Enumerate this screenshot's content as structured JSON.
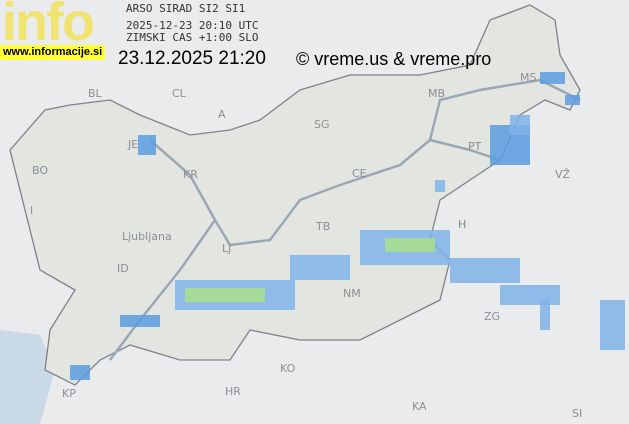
{
  "logo": {
    "text": "info",
    "url": "www.informacije.si"
  },
  "header": {
    "source": "ARSO SIRAD SI2 SI1",
    "utc_time": "2025-12-23 20:10 UTC",
    "timezone": "ZIMSKI CAS +1:00 SLO"
  },
  "local_time": "23.12.2025 21:20",
  "copyright": "© vreme.us & vreme.pro",
  "map": {
    "labels": [
      "BL",
      "CL",
      "A",
      "JE",
      "BO",
      "KR",
      "I",
      "LJ",
      "ID",
      "MB",
      "MS",
      "H",
      "SG",
      "PT",
      "CE",
      "TB",
      "VŽ",
      "NM",
      "KO",
      "KP",
      "ZG",
      "HR",
      "KA",
      "SI",
      "Ljubljana"
    ],
    "colors": {
      "background": "#e9ebec",
      "land": "#e3e6e0",
      "border": "#7d8389",
      "river": "#9aa7b4",
      "sea": "#c9d9e6",
      "radar_light": "#7fb3e8",
      "radar_mid": "#5b9be0",
      "radar_green": "#a9df8a"
    }
  }
}
